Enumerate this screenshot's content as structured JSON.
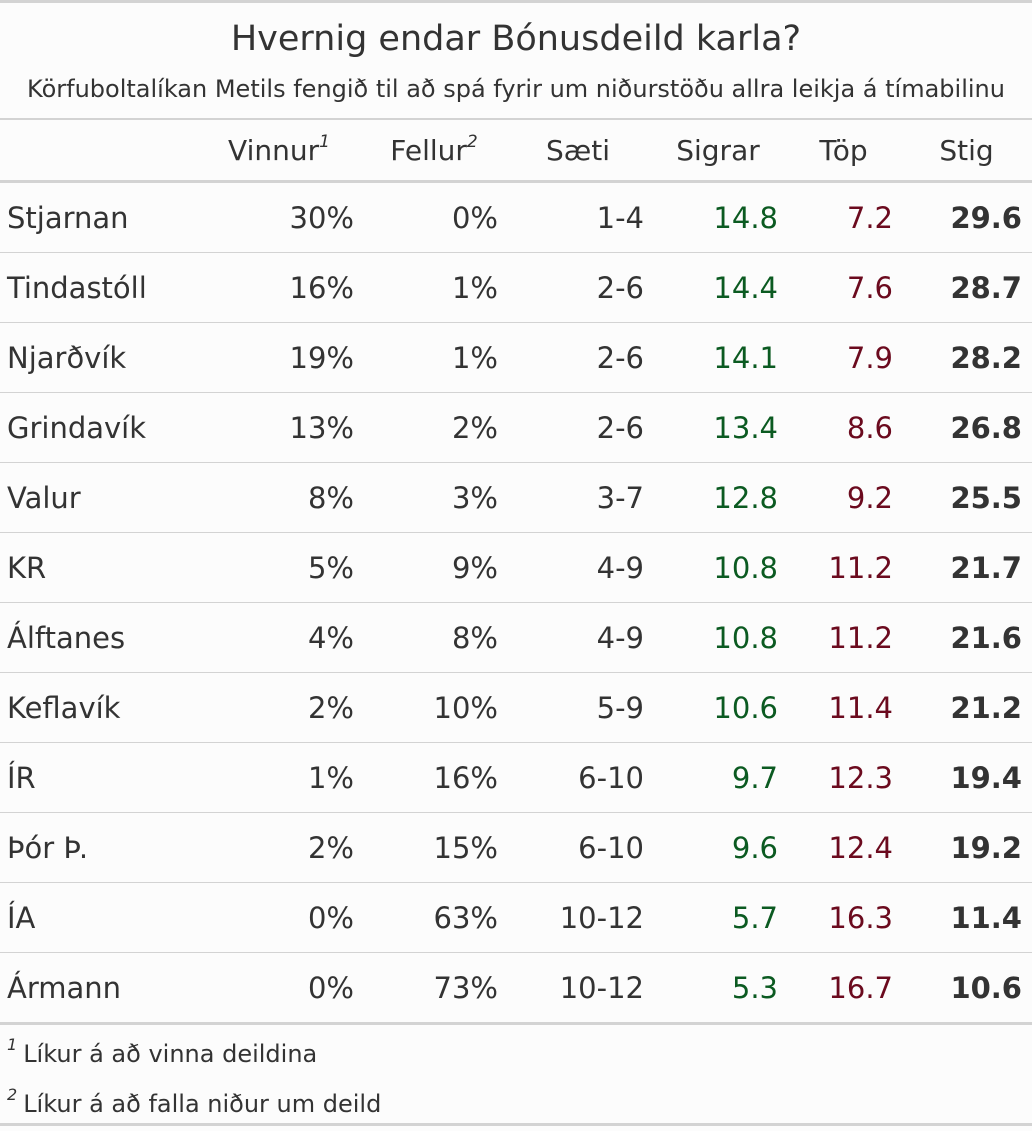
{
  "title": "Hvernig endar Bónusdeild karla?",
  "subtitle": "Körfuboltalíkan Metils fengið til að spá fyrir um niðurstöðu allra leikja á tímabilinu",
  "columns": {
    "team": "",
    "win": "Vinnur",
    "win_mark": "1",
    "fall": "Fellur",
    "fall_mark": "2",
    "place": "Sæti",
    "wins": "Sigrar",
    "losses": "Töp",
    "points": "Stig"
  },
  "colors": {
    "wins": "#0b5a21",
    "losses": "#6b0a1e"
  },
  "rows": [
    {
      "team": "Stjarnan",
      "win": "30%",
      "fall": "0%",
      "place": "1-4",
      "wins": "14.8",
      "losses": "7.2",
      "points": "29.6"
    },
    {
      "team": "Tindastóll",
      "win": "16%",
      "fall": "1%",
      "place": "2-6",
      "wins": "14.4",
      "losses": "7.6",
      "points": "28.7"
    },
    {
      "team": "Njarðvík",
      "win": "19%",
      "fall": "1%",
      "place": "2-6",
      "wins": "14.1",
      "losses": "7.9",
      "points": "28.2"
    },
    {
      "team": "Grindavík",
      "win": "13%",
      "fall": "2%",
      "place": "2-6",
      "wins": "13.4",
      "losses": "8.6",
      "points": "26.8"
    },
    {
      "team": "Valur",
      "win": "8%",
      "fall": "3%",
      "place": "3-7",
      "wins": "12.8",
      "losses": "9.2",
      "points": "25.5"
    },
    {
      "team": "KR",
      "win": "5%",
      "fall": "9%",
      "place": "4-9",
      "wins": "10.8",
      "losses": "11.2",
      "points": "21.7"
    },
    {
      "team": "Álftanes",
      "win": "4%",
      "fall": "8%",
      "place": "4-9",
      "wins": "10.8",
      "losses": "11.2",
      "points": "21.6"
    },
    {
      "team": "Keflavík",
      "win": "2%",
      "fall": "10%",
      "place": "5-9",
      "wins": "10.6",
      "losses": "11.4",
      "points": "21.2"
    },
    {
      "team": "ÍR",
      "win": "1%",
      "fall": "16%",
      "place": "6-10",
      "wins": "9.7",
      "losses": "12.3",
      "points": "19.4"
    },
    {
      "team": "Þór Þ.",
      "win": "2%",
      "fall": "15%",
      "place": "6-10",
      "wins": "9.6",
      "losses": "12.4",
      "points": "19.2"
    },
    {
      "team": "ÍA",
      "win": "0%",
      "fall": "63%",
      "place": "10-12",
      "wins": "5.7",
      "losses": "16.3",
      "points": "11.4"
    },
    {
      "team": "Ármann",
      "win": "0%",
      "fall": "73%",
      "place": "10-12",
      "wins": "5.3",
      "losses": "16.7",
      "points": "10.6"
    }
  ],
  "footnotes": [
    {
      "mark": "1",
      "text": "Líkur á að vinna deildina"
    },
    {
      "mark": "2",
      "text": "Líkur á að falla niður um deild"
    }
  ]
}
